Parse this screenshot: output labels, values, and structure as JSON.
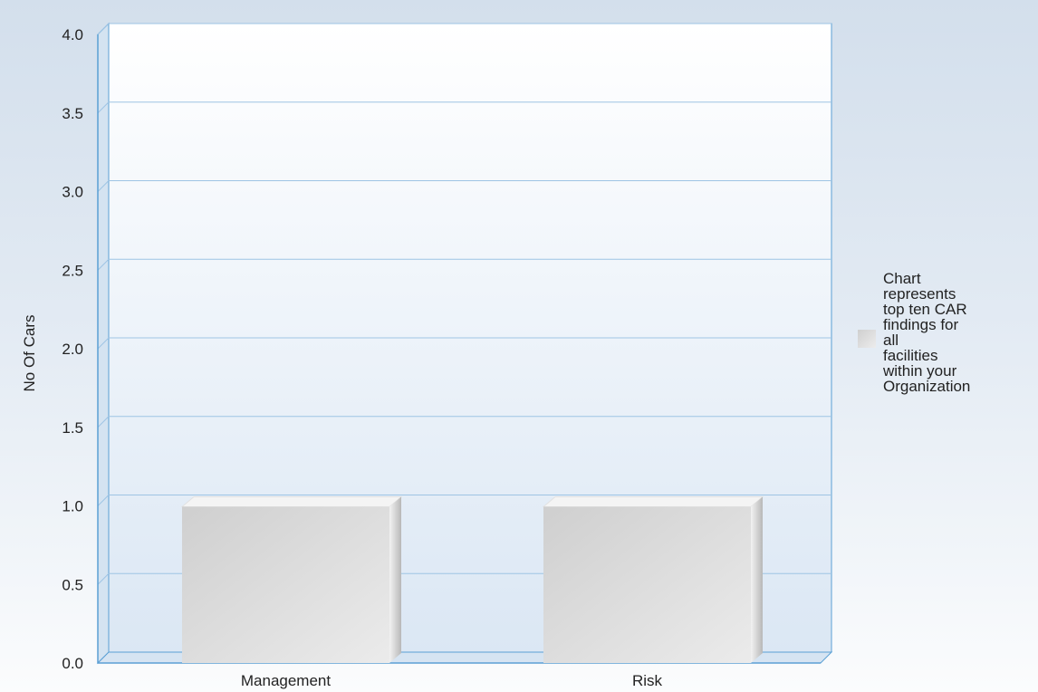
{
  "chart_data": {
    "type": "bar",
    "title": "",
    "xlabel": "",
    "ylabel": "No Of Cars",
    "categories": [
      "Management",
      "Risk"
    ],
    "series": [
      {
        "name": "Chart represents top ten CAR findings for all facilities within your Organization",
        "values": [
          1.0,
          1.0
        ]
      }
    ],
    "ylim": [
      0,
      4.0
    ],
    "yticks": [
      "0.0",
      "0.5",
      "1.0",
      "1.5",
      "2.0",
      "2.5",
      "3.0",
      "3.5",
      "4.0"
    ],
    "grid": true,
    "legend_position": "right",
    "three_d": true,
    "colors": {
      "bar": "#dcdcdc",
      "grid": "#9ec4e4",
      "axis": "#5a9fd4",
      "plot_top": "#ffffff",
      "plot_bottom": "#dbe7f4"
    }
  }
}
